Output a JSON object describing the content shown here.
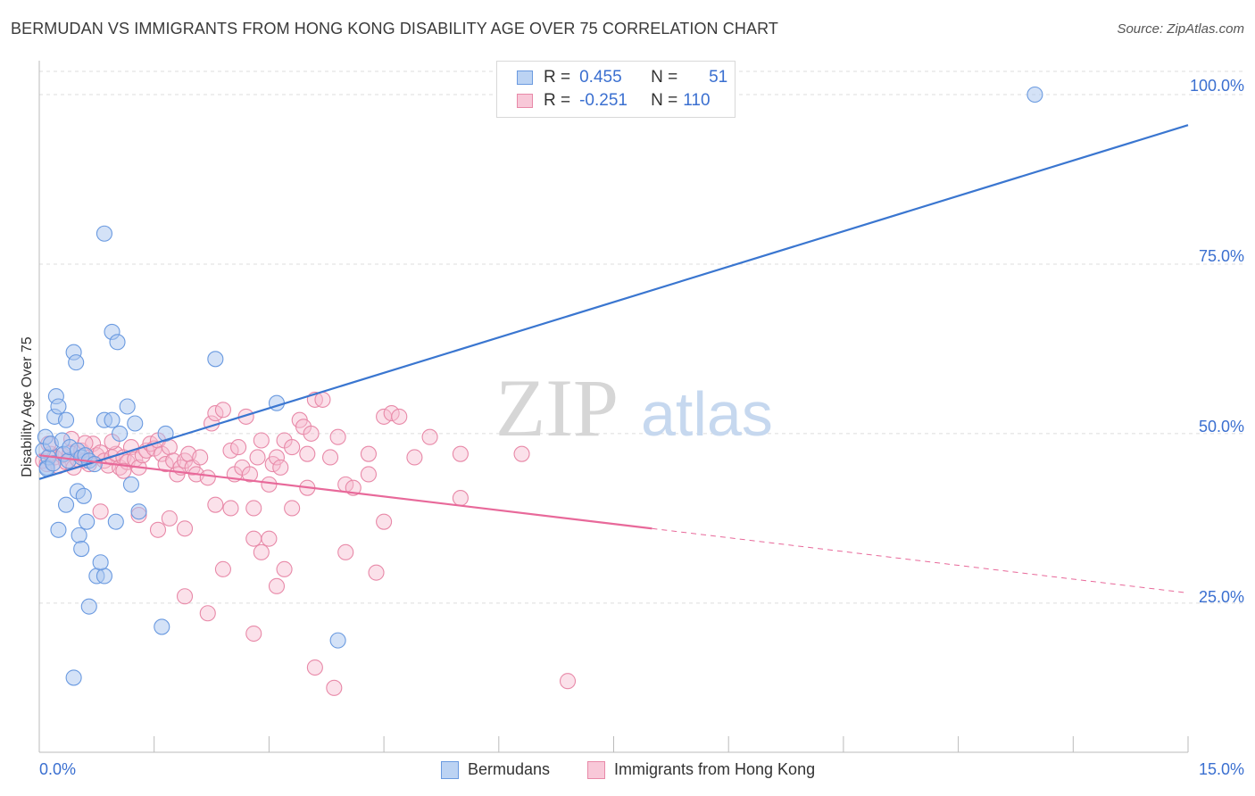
{
  "header": {
    "title": "BERMUDAN VS IMMIGRANTS FROM HONG KONG DISABILITY AGE OVER 75 CORRELATION CHART",
    "source": "Source: ZipAtlas.com"
  },
  "watermark": {
    "zip": "ZIP",
    "atlas": "atlas"
  },
  "legend": {
    "r_label": "R =",
    "n_label": "N =",
    "rows": [
      {
        "r": "0.455",
        "n": "51",
        "color": "#6a9ae0"
      },
      {
        "r": "-0.251",
        "n": "110",
        "color": "#e889a8"
      }
    ]
  },
  "bottom_legend": [
    "Bermudans",
    "Immigrants from Hong Kong"
  ],
  "axis": {
    "ylabel": "Disability Age Over 75",
    "x_min_label": "0.0%",
    "x_max_label": "15.0%",
    "y_tick_labels": [
      "100.0%",
      "75.0%",
      "50.0%",
      "25.0%"
    ]
  },
  "colors": {
    "blue_fill": "#a9c6f0",
    "blue_stroke": "#6a9ae0",
    "blue_line": "#3a76d0",
    "pink_fill": "#f6bcd0",
    "pink_stroke": "#e889a8",
    "pink_line": "#e8699a",
    "tick_label": "#3a6fd0"
  },
  "chart_data": {
    "type": "scatter",
    "title": "BERMUDAN VS IMMIGRANTS FROM HONG KONG DISABILITY AGE OVER 75 CORRELATION CHART",
    "xlabel": "",
    "ylabel": "Disability Age Over 75",
    "xlim": [
      0,
      15
    ],
    "ylim": [
      3,
      105
    ],
    "y_ticks": [
      25,
      50,
      75,
      100
    ],
    "grid": true,
    "series": [
      {
        "name": "Bermudans",
        "r": 0.455,
        "n": 51,
        "trend": {
          "x0": 0,
          "y0": 43.3,
          "x1": 15,
          "y1": 95.5
        },
        "points": [
          [
            0.05,
            47.5
          ],
          [
            0.08,
            49.5
          ],
          [
            0.1,
            45.0
          ],
          [
            0.12,
            46.5
          ],
          [
            0.15,
            48.5
          ],
          [
            0.1,
            44.8
          ],
          [
            0.18,
            45.6
          ],
          [
            0.2,
            52.5
          ],
          [
            0.22,
            55.5
          ],
          [
            0.25,
            54.0
          ],
          [
            0.3,
            49.0
          ],
          [
            0.32,
            47.0
          ],
          [
            0.35,
            52.0
          ],
          [
            0.38,
            46.0
          ],
          [
            0.4,
            48.0
          ],
          [
            0.45,
            62.0
          ],
          [
            0.48,
            60.5
          ],
          [
            0.5,
            47.5
          ],
          [
            0.55,
            46.5
          ],
          [
            0.6,
            46.8
          ],
          [
            0.65,
            46.0
          ],
          [
            0.5,
            41.5
          ],
          [
            0.58,
            40.8
          ],
          [
            0.35,
            39.5
          ],
          [
            0.25,
            35.8
          ],
          [
            0.52,
            35.0
          ],
          [
            0.55,
            33.0
          ],
          [
            0.62,
            37.0
          ],
          [
            0.65,
            24.5
          ],
          [
            0.75,
            29.0
          ],
          [
            0.85,
            29.0
          ],
          [
            0.8,
            31.0
          ],
          [
            0.72,
            45.5
          ],
          [
            0.85,
            79.5
          ],
          [
            0.95,
            65.0
          ],
          [
            1.02,
            63.5
          ],
          [
            0.85,
            52.0
          ],
          [
            0.95,
            52.0
          ],
          [
            1.05,
            50.0
          ],
          [
            1.15,
            54.0
          ],
          [
            1.25,
            51.5
          ],
          [
            1.2,
            42.5
          ],
          [
            1.3,
            38.5
          ],
          [
            1.0,
            37.0
          ],
          [
            1.65,
            50.0
          ],
          [
            2.3,
            61.0
          ],
          [
            3.1,
            54.5
          ],
          [
            3.9,
            19.5
          ],
          [
            1.6,
            21.5
          ],
          [
            0.45,
            14.0
          ],
          [
            13.0,
            100.0
          ]
        ]
      },
      {
        "name": "Immigrants from Hong Kong",
        "r": -0.251,
        "n": 110,
        "trend": {
          "x0": 0,
          "y0": 46.8,
          "x1": 8.0,
          "y1": 36.0,
          "dashed_to_x": 15,
          "dashed_to_y": 26.5
        },
        "points": [
          [
            0.05,
            46.0
          ],
          [
            0.1,
            45.5
          ],
          [
            0.15,
            47.0
          ],
          [
            0.2,
            46.5
          ],
          [
            0.25,
            45.2
          ],
          [
            0.3,
            46.8
          ],
          [
            0.35,
            45.8
          ],
          [
            0.4,
            47.2
          ],
          [
            0.45,
            45.0
          ],
          [
            0.5,
            46.2
          ],
          [
            0.55,
            47.5
          ],
          [
            0.6,
            46.0
          ],
          [
            0.65,
            45.5
          ],
          [
            0.7,
            48.5
          ],
          [
            0.75,
            46.8
          ],
          [
            0.8,
            47.2
          ],
          [
            0.85,
            46.0
          ],
          [
            0.9,
            45.3
          ],
          [
            0.95,
            46.5
          ],
          [
            1.0,
            47.0
          ],
          [
            1.05,
            45.0
          ],
          [
            1.1,
            46.5
          ],
          [
            1.15,
            45.8
          ],
          [
            1.2,
            48.0
          ],
          [
            1.25,
            46.2
          ],
          [
            1.3,
            45.0
          ],
          [
            1.35,
            46.8
          ],
          [
            1.4,
            47.5
          ],
          [
            1.45,
            48.5
          ],
          [
            1.5,
            47.8
          ],
          [
            1.55,
            49.0
          ],
          [
            1.6,
            47.0
          ],
          [
            1.65,
            45.5
          ],
          [
            1.7,
            48.0
          ],
          [
            1.75,
            46.0
          ],
          [
            1.8,
            44.0
          ],
          [
            1.85,
            45.0
          ],
          [
            1.9,
            46.0
          ],
          [
            1.95,
            47.0
          ],
          [
            2.0,
            45.0
          ],
          [
            2.05,
            44.0
          ],
          [
            2.1,
            46.5
          ],
          [
            2.2,
            43.5
          ],
          [
            2.25,
            51.5
          ],
          [
            2.3,
            53.0
          ],
          [
            2.4,
            53.5
          ],
          [
            2.5,
            47.5
          ],
          [
            2.55,
            44.0
          ],
          [
            2.6,
            48.0
          ],
          [
            2.65,
            45.0
          ],
          [
            2.7,
            52.5
          ],
          [
            2.75,
            44.0
          ],
          [
            2.8,
            39.0
          ],
          [
            2.85,
            46.5
          ],
          [
            2.9,
            49.0
          ],
          [
            3.0,
            42.5
          ],
          [
            3.05,
            45.5
          ],
          [
            3.1,
            46.5
          ],
          [
            3.15,
            45.0
          ],
          [
            3.2,
            49.0
          ],
          [
            3.3,
            48.0
          ],
          [
            3.4,
            52.0
          ],
          [
            3.45,
            51.0
          ],
          [
            3.5,
            47.0
          ],
          [
            3.55,
            50.0
          ],
          [
            3.6,
            55.0
          ],
          [
            3.7,
            55.0
          ],
          [
            3.8,
            46.5
          ],
          [
            3.9,
            49.5
          ],
          [
            4.0,
            42.5
          ],
          [
            4.1,
            42.0
          ],
          [
            4.3,
            47.0
          ],
          [
            4.5,
            52.5
          ],
          [
            4.6,
            53.0
          ],
          [
            4.7,
            52.5
          ],
          [
            4.9,
            46.5
          ],
          [
            5.1,
            49.5
          ],
          [
            5.5,
            47.0
          ],
          [
            0.8,
            38.5
          ],
          [
            1.3,
            38.0
          ],
          [
            1.55,
            35.8
          ],
          [
            1.7,
            37.5
          ],
          [
            1.9,
            36.0
          ],
          [
            2.3,
            39.5
          ],
          [
            2.5,
            39.0
          ],
          [
            2.8,
            34.5
          ],
          [
            3.0,
            34.5
          ],
          [
            3.3,
            39.0
          ],
          [
            3.5,
            42.0
          ],
          [
            4.3,
            44.0
          ],
          [
            4.5,
            37.0
          ],
          [
            5.5,
            40.5
          ],
          [
            2.9,
            32.5
          ],
          [
            3.2,
            30.0
          ],
          [
            4.4,
            29.5
          ],
          [
            2.4,
            30.0
          ],
          [
            2.2,
            23.5
          ],
          [
            1.9,
            26.0
          ],
          [
            3.1,
            27.5
          ],
          [
            2.8,
            20.5
          ],
          [
            4.0,
            32.5
          ],
          [
            3.6,
            15.5
          ],
          [
            3.85,
            12.5
          ],
          [
            6.9,
            13.5
          ],
          [
            0.12,
            48.5
          ],
          [
            0.42,
            49.2
          ],
          [
            0.6,
            48.6
          ],
          [
            0.95,
            48.8
          ],
          [
            1.1,
            44.5
          ],
          [
            6.3,
            47.0
          ]
        ]
      }
    ]
  }
}
